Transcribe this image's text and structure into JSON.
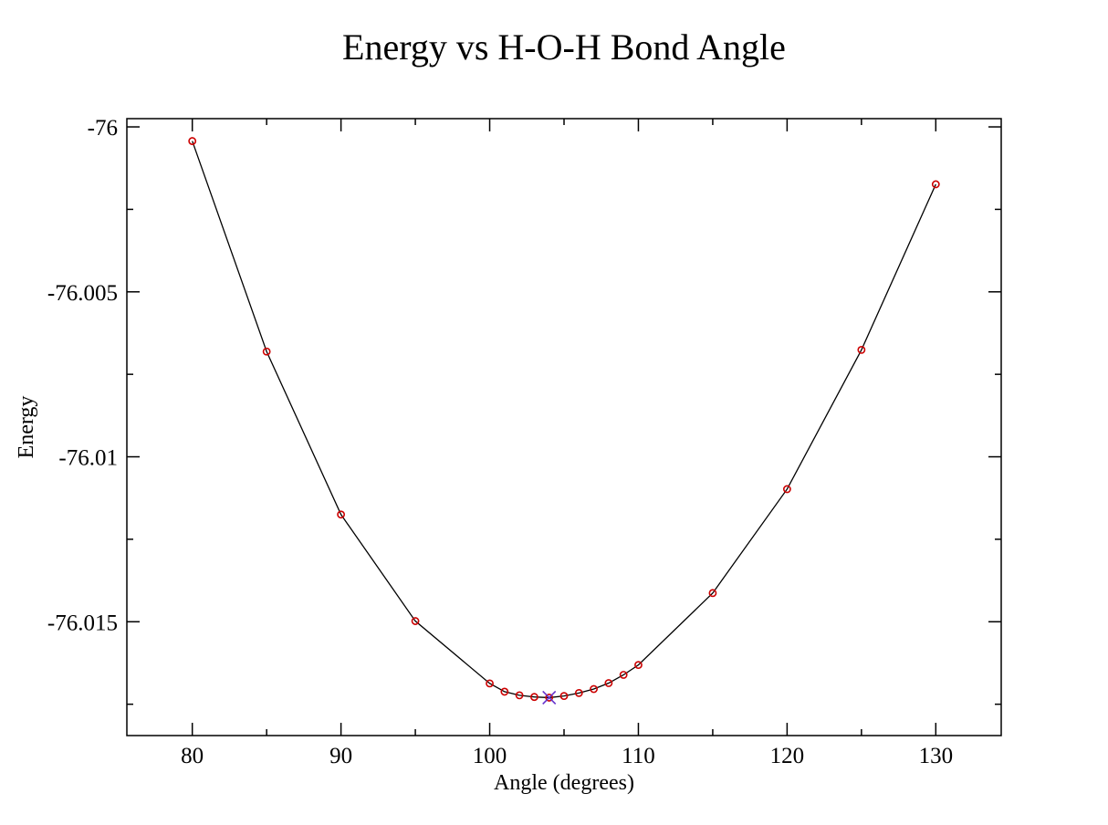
{
  "chart_data": {
    "type": "line",
    "title": "Energy vs H-O-H Bond Angle",
    "xlabel": "Angle (degrees)",
    "ylabel": "Energy",
    "xlim": [
      75.6,
      134.4
    ],
    "ylim": [
      -76.01845,
      -75.99975
    ],
    "xticks": [
      80,
      85,
      90,
      95,
      100,
      105,
      110,
      115,
      120,
      125,
      130
    ],
    "xtick_labels": [
      "80",
      "",
      "90",
      "",
      "100",
      "",
      "110",
      "",
      "120",
      "",
      "130"
    ],
    "yticks": [
      -76.0,
      -76.0025,
      -76.005,
      -76.0075,
      -76.01,
      -76.0125,
      -76.015,
      -76.0175
    ],
    "ytick_labels": [
      "-76",
      "",
      "-76.005",
      "",
      "-76.01",
      "",
      "-76.015",
      ""
    ],
    "grid": false,
    "series_color": "#000000",
    "marker_color": "#cc0000",
    "minimum_marker_color": "#6633cc",
    "series": [
      {
        "x": [
          80,
          85,
          90,
          95,
          100,
          101,
          102,
          103,
          104,
          105,
          106,
          107,
          108,
          109,
          110,
          115,
          120,
          125,
          130
        ],
        "y": [
          -76.00043,
          -76.00681,
          -76.01175,
          -76.01498,
          -76.01687,
          -76.01712,
          -76.01723,
          -76.01728,
          -76.0173,
          -76.01725,
          -76.01716,
          -76.01704,
          -76.01686,
          -76.01661,
          -76.01631,
          -76.01413,
          -76.01098,
          -76.00676,
          -76.00174
        ]
      }
    ],
    "minimum_point": {
      "x": 104,
      "y": -76.0173
    }
  }
}
